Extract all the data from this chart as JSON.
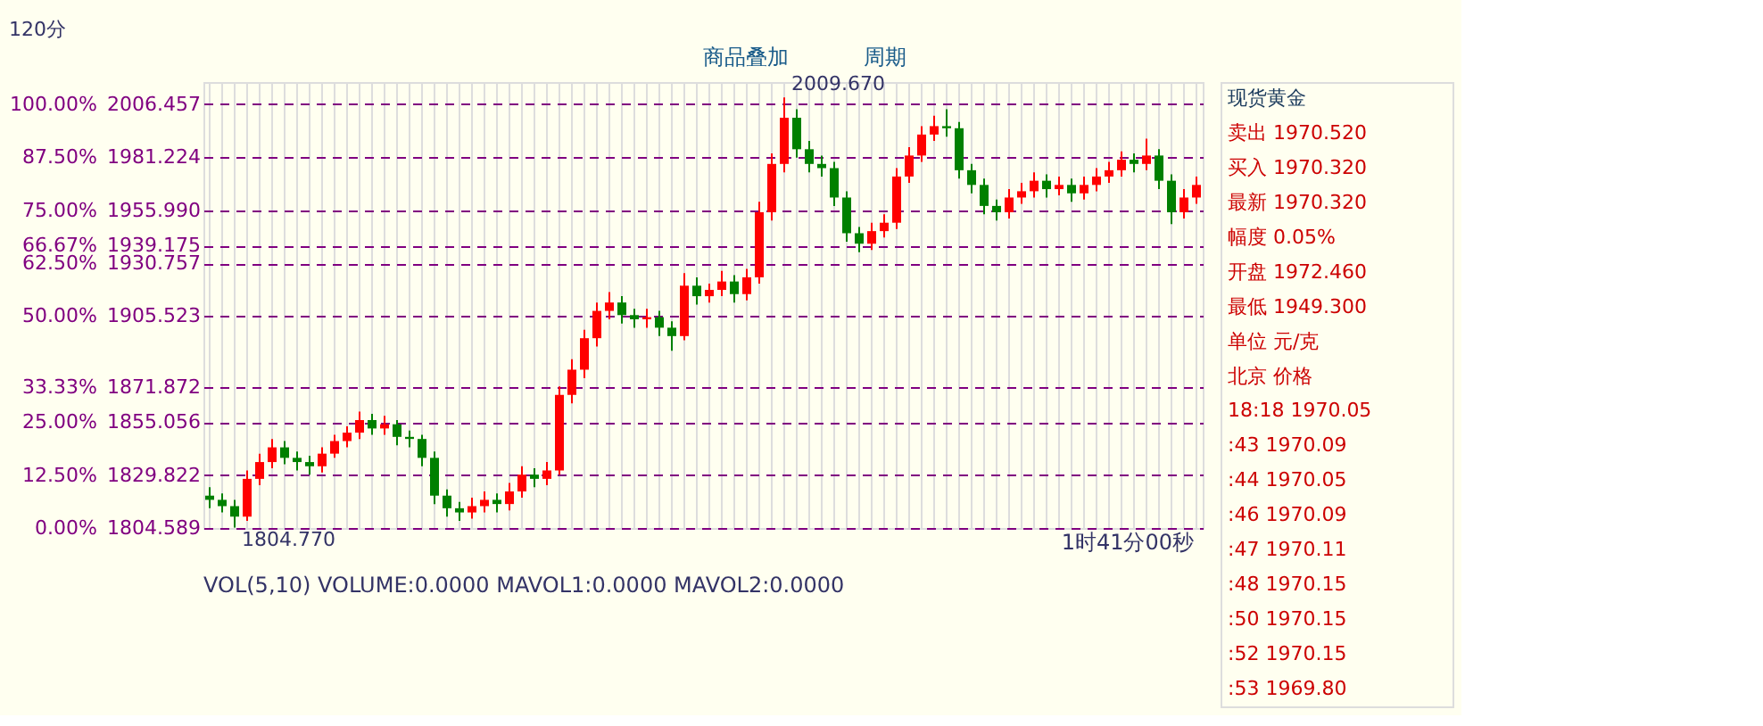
{
  "chart_data": {
    "type": "candlestick",
    "title": "120分",
    "categories": [
      null,
      null,
      null,
      null,
      null,
      null,
      null,
      null,
      null,
      null,
      null,
      null,
      null,
      null,
      null,
      null,
      null,
      null,
      null,
      null,
      null,
      null,
      null,
      null,
      null,
      null,
      null,
      null,
      null,
      null,
      null,
      null,
      null,
      null,
      null,
      null,
      null,
      null,
      null,
      null,
      null,
      null,
      null,
      null,
      null,
      null,
      null,
      null,
      null,
      null,
      null,
      null,
      null,
      null,
      null,
      null,
      null,
      null,
      null,
      null,
      null,
      null,
      null,
      null,
      null,
      null,
      null,
      null,
      null,
      null,
      null,
      null,
      null,
      null,
      null,
      null,
      null,
      null,
      null,
      null
    ],
    "ohlc": [
      [
        1820,
        1824,
        1814,
        1818
      ],
      [
        1818,
        1821,
        1812,
        1815
      ],
      [
        1815,
        1818,
        1804.77,
        1810
      ],
      [
        1810,
        1832,
        1808,
        1828
      ],
      [
        1828,
        1840,
        1825,
        1836
      ],
      [
        1836,
        1847,
        1833,
        1843
      ],
      [
        1843,
        1846,
        1835,
        1838
      ],
      [
        1838,
        1841,
        1832,
        1836
      ],
      [
        1836,
        1839,
        1830,
        1834
      ],
      [
        1834,
        1843,
        1831,
        1840
      ],
      [
        1840,
        1849,
        1838,
        1846
      ],
      [
        1846,
        1853,
        1843,
        1850
      ],
      [
        1850,
        1860,
        1847,
        1856
      ],
      [
        1856,
        1859,
        1849,
        1852
      ],
      [
        1852,
        1858,
        1849,
        1854
      ],
      [
        1854,
        1856,
        1844,
        1848
      ],
      [
        1848,
        1851,
        1843,
        1847
      ],
      [
        1847,
        1849,
        1834,
        1838
      ],
      [
        1838,
        1841,
        1816,
        1820
      ],
      [
        1820,
        1823,
        1810,
        1814
      ],
      [
        1814,
        1817,
        1808,
        1812
      ],
      [
        1812,
        1819,
        1809,
        1815
      ],
      [
        1815,
        1822,
        1812,
        1818
      ],
      [
        1818,
        1821,
        1812,
        1816
      ],
      [
        1816,
        1826,
        1813,
        1822
      ],
      [
        1822,
        1834,
        1819,
        1830
      ],
      [
        1830,
        1833,
        1824,
        1828
      ],
      [
        1828,
        1836,
        1825,
        1832
      ],
      [
        1832,
        1872,
        1830,
        1868
      ],
      [
        1868,
        1885,
        1864,
        1880
      ],
      [
        1880,
        1899,
        1876,
        1895
      ],
      [
        1895,
        1912,
        1891,
        1908
      ],
      [
        1908,
        1917,
        1904,
        1912
      ],
      [
        1912,
        1915,
        1902,
        1906
      ],
      [
        1906,
        1909,
        1900,
        1904
      ],
      [
        1904,
        1909,
        1900,
        1905
      ],
      [
        1905,
        1908,
        1896,
        1900
      ],
      [
        1900,
        1903,
        1889,
        1896
      ],
      [
        1896,
        1926,
        1894,
        1920
      ],
      [
        1920,
        1924,
        1911,
        1915
      ],
      [
        1915,
        1921,
        1912,
        1918
      ],
      [
        1918,
        1927,
        1915,
        1922
      ],
      [
        1922,
        1925,
        1912,
        1916
      ],
      [
        1916,
        1928,
        1913,
        1924
      ],
      [
        1924,
        1960,
        1921,
        1955
      ],
      [
        1955,
        1983,
        1951,
        1978
      ],
      [
        1978,
        2009.67,
        1974,
        2000
      ],
      [
        2000,
        2004,
        1981,
        1985
      ],
      [
        1985,
        1989,
        1974,
        1978
      ],
      [
        1978,
        1982,
        1972,
        1976
      ],
      [
        1976,
        1979,
        1958,
        1962
      ],
      [
        1962,
        1965,
        1941,
        1945
      ],
      [
        1945,
        1948,
        1936,
        1940
      ],
      [
        1940,
        1950,
        1937,
        1946
      ],
      [
        1946,
        1954,
        1943,
        1950
      ],
      [
        1950,
        1976,
        1947,
        1972
      ],
      [
        1972,
        1986,
        1969,
        1982
      ],
      [
        1982,
        1996,
        1979,
        1992
      ],
      [
        1992,
        2001,
        1989,
        1996
      ],
      [
        1996,
        2004,
        1991,
        1995
      ],
      [
        1995,
        1998,
        1971,
        1975
      ],
      [
        1975,
        1978,
        1964,
        1968
      ],
      [
        1968,
        1971,
        1954,
        1958
      ],
      [
        1958,
        1961,
        1951,
        1955
      ],
      [
        1955,
        1966,
        1952,
        1962
      ],
      [
        1962,
        1969,
        1959,
        1965
      ],
      [
        1965,
        1974,
        1962,
        1970
      ],
      [
        1970,
        1973,
        1962,
        1966
      ],
      [
        1966,
        1972,
        1963,
        1968
      ],
      [
        1968,
        1971,
        1960,
        1964
      ],
      [
        1964,
        1972,
        1961,
        1968
      ],
      [
        1968,
        1976,
        1965,
        1972
      ],
      [
        1972,
        1979,
        1969,
        1975
      ],
      [
        1975,
        1984,
        1972,
        1980
      ],
      [
        1980,
        1983,
        1974,
        1978
      ],
      [
        1978,
        1990,
        1975,
        1982
      ],
      [
        1982,
        1985,
        1966,
        1970
      ],
      [
        1970,
        1973,
        1949.3,
        1955
      ],
      [
        1955,
        1966,
        1952,
        1962
      ],
      [
        1962,
        1972,
        1959,
        1968
      ]
    ],
    "colors": [
      "#008000",
      "#008000",
      "#008000",
      "#ff0000",
      "#ff0000",
      "#ff0000",
      "#008000",
      "#008000",
      "#008000",
      "#ff0000",
      "#ff0000",
      "#ff0000",
      "#ff0000",
      "#008000",
      "#ff0000",
      "#008000",
      "#008000",
      "#008000",
      "#008000",
      "#008000",
      "#008000",
      "#ff0000",
      "#ff0000",
      "#008000",
      "#ff0000",
      "#ff0000",
      "#008000",
      "#ff0000",
      "#ff0000",
      "#ff0000",
      "#ff0000",
      "#ff0000",
      "#ff0000",
      "#008000",
      "#008000",
      "#ff0000",
      "#008000",
      "#008000",
      "#ff0000",
      "#008000",
      "#ff0000",
      "#ff0000",
      "#008000",
      "#ff0000",
      "#ff0000",
      "#ff0000",
      "#ff0000",
      "#008000",
      "#008000",
      "#008000",
      "#008000",
      "#008000",
      "#008000",
      "#ff0000",
      "#ff0000",
      "#ff0000",
      "#ff0000",
      "#ff0000",
      "#ff0000",
      "#008000",
      "#008000",
      "#008000",
      "#008000",
      "#008000",
      "#ff0000",
      "#ff0000",
      "#ff0000",
      "#008000",
      "#ff0000",
      "#008000",
      "#ff0000",
      "#ff0000",
      "#ff0000",
      "#ff0000",
      "#008000",
      "#ff0000",
      "#008000",
      "#008000",
      "#ff0000",
      "#ff0000"
    ],
    "ylim": [
      1804.589,
      2017
    ],
    "yticks": [
      2006.457,
      1981.224,
      {
        "value": 1955.99,
        "label": "1955.990"
      },
      1939.175,
      1930.757,
      1905.523,
      1871.872,
      1855.056,
      1829.822,
      1804.589
    ],
    "y2lim": [
      0,
      105.22
    ],
    "y2ticks": [
      {
        "value": 100,
        "label": "100.00%"
      },
      {
        "value": 87.5,
        "label": "87.50%"
      },
      {
        "value": 75,
        "label": "75.00%"
      },
      {
        "value": 66.67,
        "label": "66.67%"
      },
      {
        "value": 62.5,
        "label": "62.50%"
      },
      {
        "value": 50,
        "label": "50.00%"
      },
      {
        "value": 33.33,
        "label": "33.33%"
      },
      {
        "value": 25,
        "label": "25.00%"
      },
      {
        "value": 12.5,
        "label": "12.50%"
      },
      {
        "value": 0,
        "label": "0.00%"
      }
    ],
    "grid": true,
    "tick_labels": "y",
    "annotations": [
      "2009.670",
      "1804.770",
      "商品叠加",
      "周期",
      "1时41分00秒",
      "VOL(5,10) VOLUME:0.0000 MAVOL1:0.0000 MAVOL2:0.0000",
      "现货黄金",
      "卖出 1970.520",
      "买入 1970.320",
      "最新 1970.320",
      "幅度 0.05%",
      "开盘 1972.460",
      "最低 1949.300",
      "单位 元/克",
      "北京 价格",
      "18:18 1970.05",
      ":43 1970.09",
      ":44 1970.05",
      ":46 1970.09",
      ":47 1970.11",
      ":48 1970.15",
      ":50 1970.15",
      ":52 1970.15",
      ":53 1969.80"
    ]
  }
}
